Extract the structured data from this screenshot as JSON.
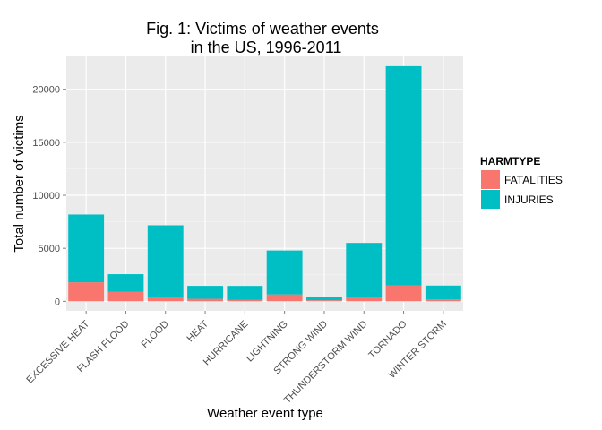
{
  "chart_data": {
    "type": "bar",
    "stacked": true,
    "title": [
      "Fig. 1: Victims of weather events",
      "in the US, 1996-2011"
    ],
    "xlabel": "Weather event type",
    "ylabel": "Total number of victims",
    "categories": [
      "EXCESSIVE HEAT",
      "FLASH FLOOD",
      "FLOOD",
      "HEAT",
      "HURRICANE",
      "LIGHTNING",
      "STRONG WIND",
      "THUNDERSTORM WIND",
      "TORNADO",
      "WINTER STORM"
    ],
    "series": [
      {
        "name": "FATALITIES",
        "color": "#F8766D",
        "values": [
          1797,
          887,
          414,
          237,
          125,
          651,
          103,
          380,
          1511,
          191
        ]
      },
      {
        "name": "INJURIES",
        "color": "#00BFC4",
        "values": [
          6391,
          1674,
          6758,
          1222,
          1328,
          4141,
          280,
          5129,
          20667,
          1292
        ]
      }
    ],
    "ylim": [
      -900,
      23100
    ],
    "yticks": [
      0,
      5000,
      10000,
      15000,
      20000
    ],
    "ytick_labels": [
      "0",
      "5000",
      "10000",
      "15000",
      "20000"
    ],
    "grid": true,
    "panel_background": "#EBEBEB",
    "legend": {
      "title": "HARMTYPE",
      "placement": "right",
      "entries": [
        "FATALITIES",
        "INJURIES"
      ]
    }
  }
}
